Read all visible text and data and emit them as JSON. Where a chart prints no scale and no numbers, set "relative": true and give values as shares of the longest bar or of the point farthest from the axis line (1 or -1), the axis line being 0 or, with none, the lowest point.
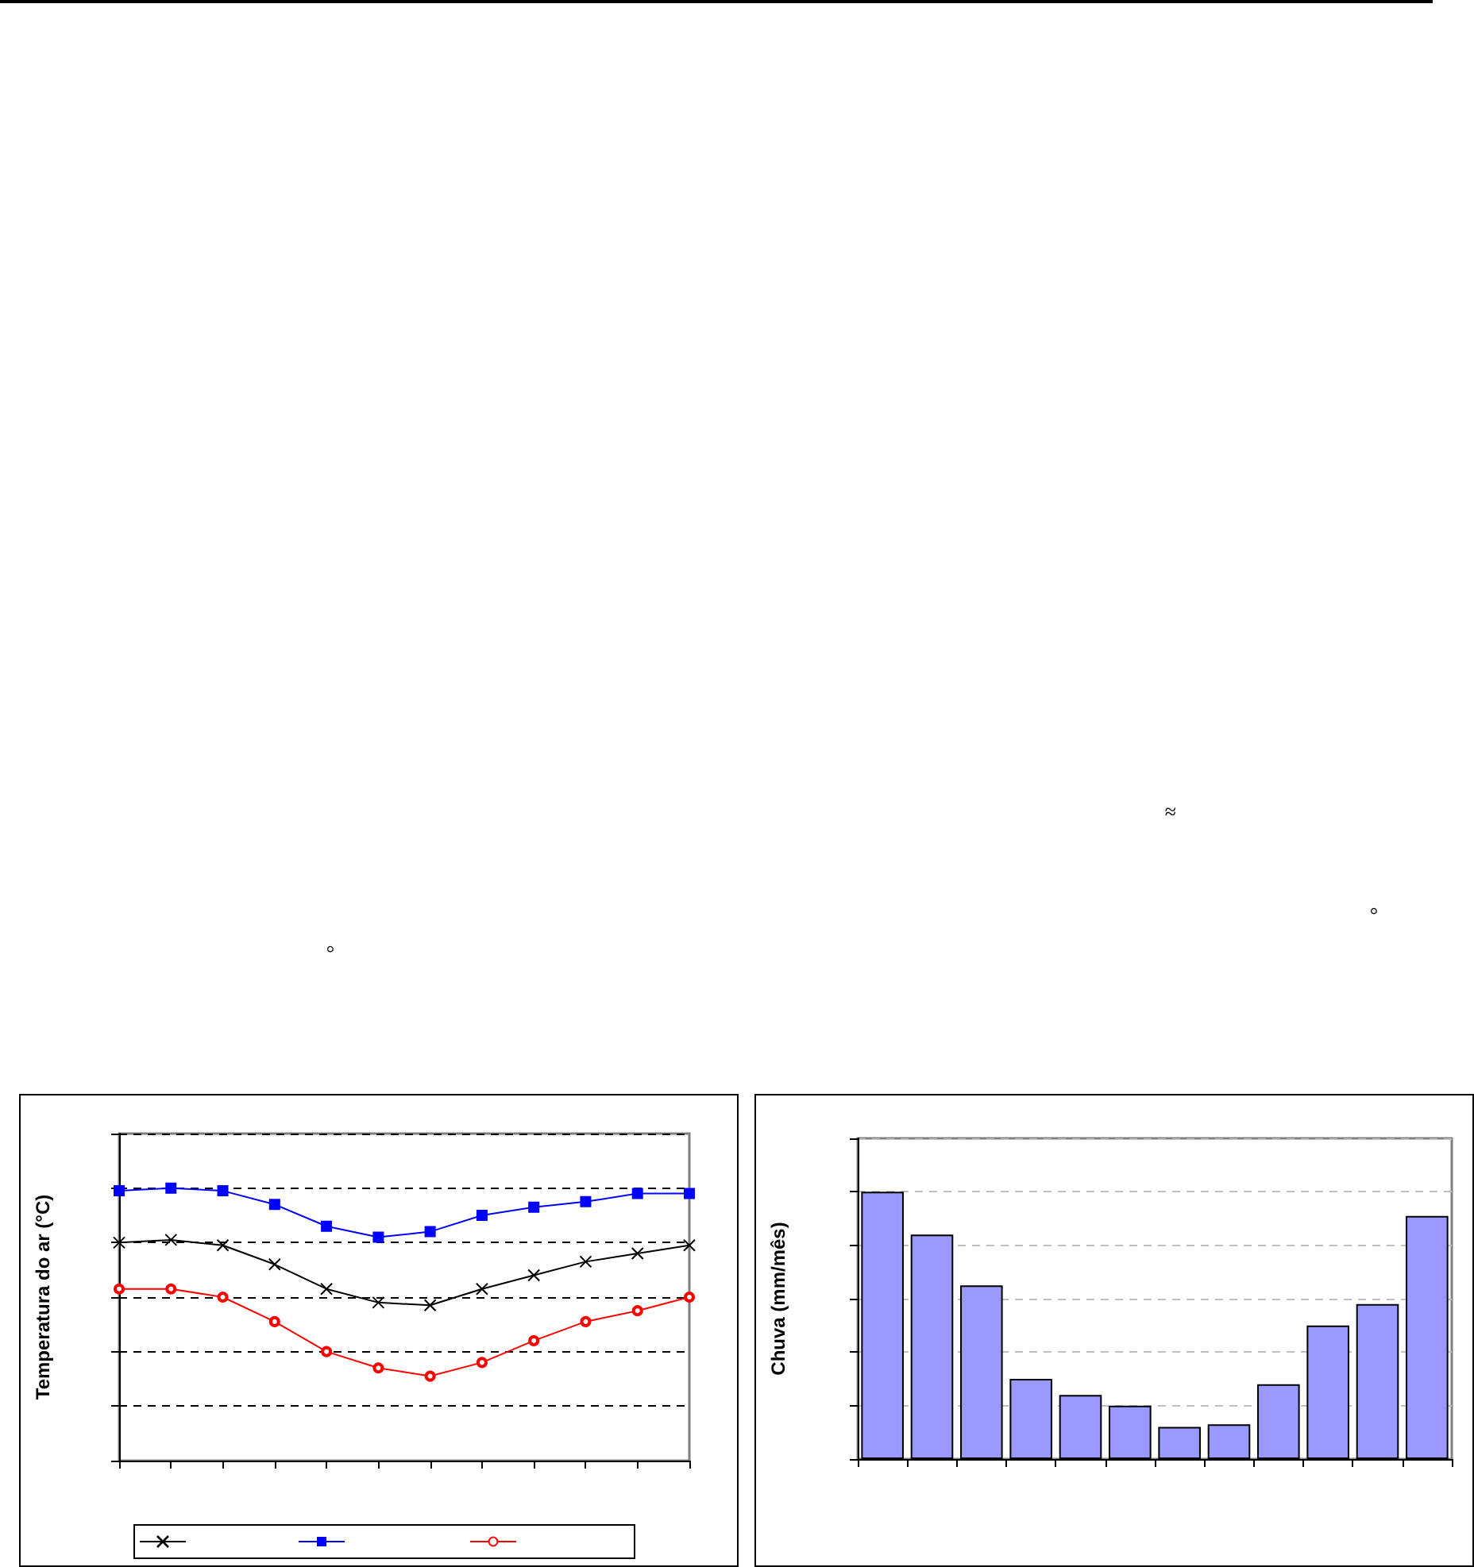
{
  "chart_data": [
    {
      "type": "other",
      "annotations": [
        "≈",
        "°",
        "°"
      ]
    },
    {
      "type": "line",
      "ylabel": "Temperatura do ar (°C)",
      "categories": [
        null,
        null,
        null,
        null,
        null,
        null,
        null,
        null,
        null,
        null,
        null,
        null
      ],
      "relative": true,
      "grid": "y",
      "series": [
        {
          "color": "#000000",
          "marker": "cross",
          "values": [
            0.8,
            0.81,
            0.79,
            0.72,
            0.63,
            0.58,
            0.57,
            0.63,
            0.68,
            0.73,
            0.76,
            0.79
          ]
        },
        {
          "color": "#0000ff",
          "marker": "square",
          "values": [
            0.99,
            1,
            0.99,
            0.94,
            0.86,
            0.82,
            0.84,
            0.9,
            0.93,
            0.95,
            0.98,
            0.98
          ]
        },
        {
          "color": "#ff0000",
          "marker": "circle",
          "values": [
            0.63,
            0.63,
            0.6,
            0.51,
            0.4,
            0.34,
            0.31,
            0.36,
            0.44,
            0.51,
            0.55,
            0.6
          ]
        }
      ]
    },
    {
      "type": "bar",
      "ylabel": "Chuva (mm/mês)",
      "categories": [
        null,
        null,
        null,
        null,
        null,
        null,
        null,
        null,
        null,
        null,
        null,
        null
      ],
      "relative": true,
      "grid": "y",
      "color": "#9999ff",
      "values": [
        1,
        0.84,
        0.65,
        0.3,
        0.24,
        0.2,
        0.12,
        0.13,
        0.28,
        0.5,
        0.58,
        0.91
      ]
    }
  ]
}
